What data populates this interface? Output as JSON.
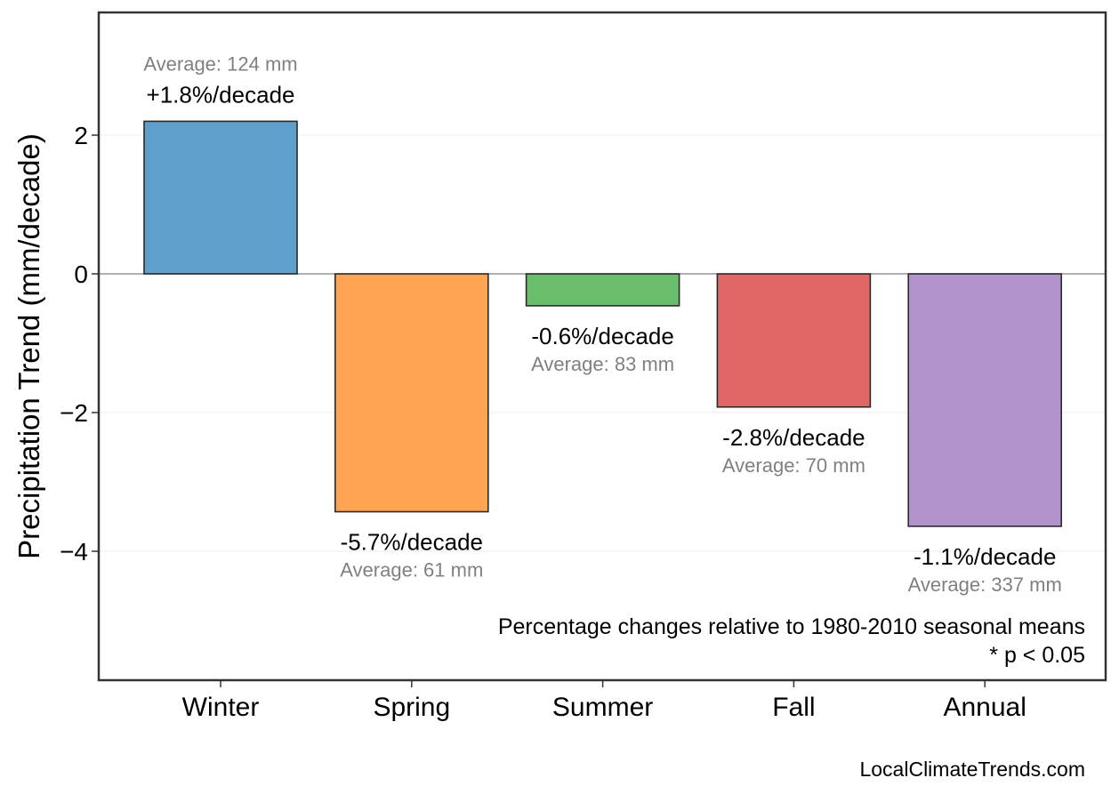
{
  "chart_data": {
    "type": "bar",
    "xlabel": "",
    "ylabel": "Precipitation Trend (mm/decade)",
    "ylim": [
      -5.9,
      3.8
    ],
    "yticks": [
      2,
      0,
      -2,
      -4
    ],
    "ytick_labels": [
      "2",
      "0",
      "−2",
      "−4"
    ],
    "grid": true,
    "categories": [
      "Winter",
      "Spring",
      "Summer",
      "Fall",
      "Annual"
    ],
    "values": [
      2.2,
      -3.43,
      -0.46,
      -1.92,
      -3.64
    ],
    "colors": [
      "#5f9fcb",
      "#fea453",
      "#6abd6a",
      "#e06668",
      "#b293cc"
    ],
    "pct_labels": [
      "+1.8%/decade",
      "-5.7%/decade",
      "-0.6%/decade",
      "-2.8%/decade",
      "-1.1%/decade"
    ],
    "avg_labels": [
      "Average: 124 mm",
      "Average: 61 mm",
      "Average: 83 mm",
      "Average: 70 mm",
      "Average: 337 mm"
    ],
    "annotation_lines": [
      "Percentage changes relative to 1980-2010 seasonal means",
      "* p < 0.05"
    ]
  },
  "footer": {
    "source": "LocalClimateTrends.com"
  }
}
